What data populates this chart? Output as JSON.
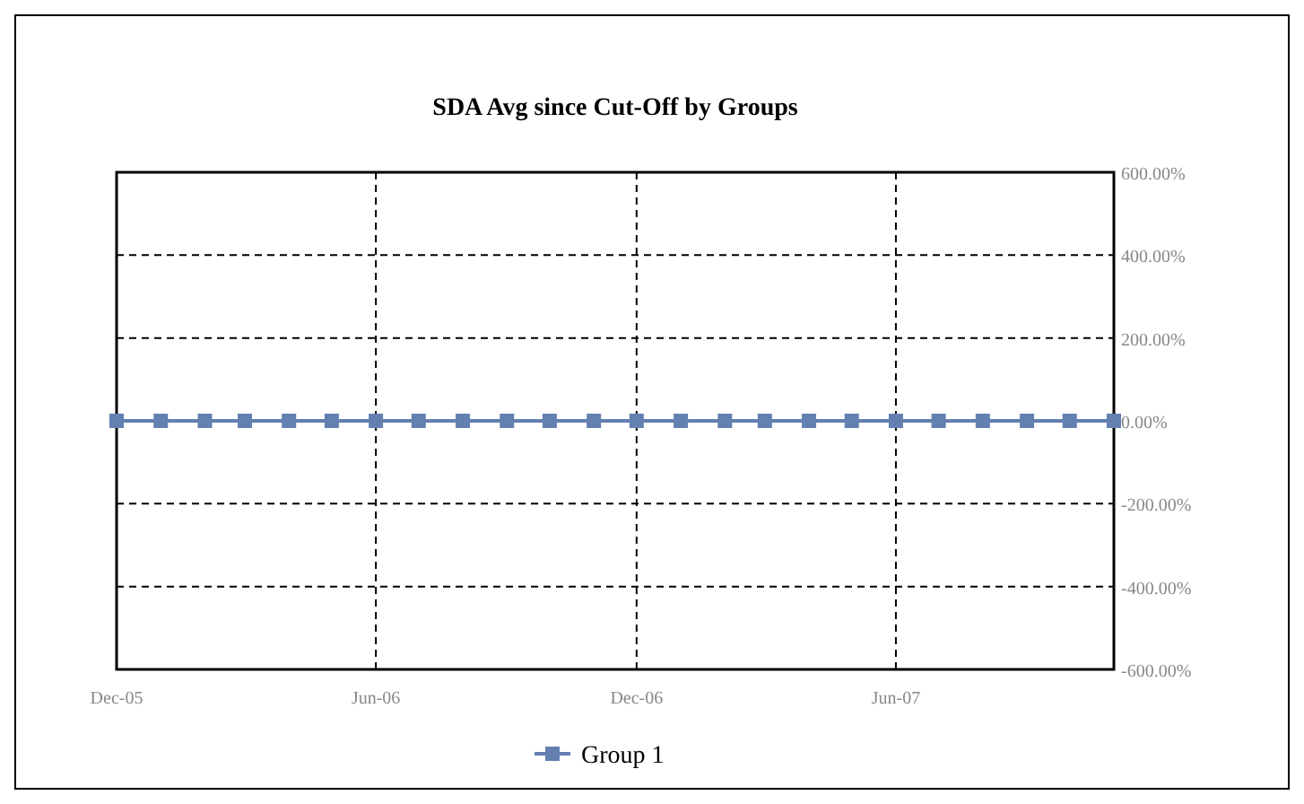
{
  "chart_data": {
    "type": "line",
    "title": "SDA Avg since Cut-Off by Groups",
    "x": [
      "2005-12",
      "2006-01",
      "2006-02",
      "2006-03",
      "2006-04",
      "2006-05",
      "2006-06",
      "2006-07",
      "2006-08",
      "2006-09",
      "2006-10",
      "2006-11",
      "2006-12",
      "2007-01",
      "2007-02",
      "2007-03",
      "2007-04",
      "2007-05",
      "2007-06",
      "2007-07",
      "2007-08",
      "2007-09",
      "2007-10",
      "2007-11"
    ],
    "series": [
      {
        "name": "Group 1",
        "color": "#6380b0",
        "values": [
          0,
          0,
          0,
          0,
          0,
          0,
          0,
          0,
          0,
          0,
          0,
          0,
          0,
          0,
          0,
          0,
          0,
          0,
          0,
          0,
          0,
          0,
          0,
          0
        ]
      }
    ],
    "xlim": [
      "2005-12",
      "2007-11"
    ],
    "xticks": [
      {
        "value": "2005-12",
        "label": "Dec-05"
      },
      {
        "value": "2006-06",
        "label": "Jun-06"
      },
      {
        "value": "2006-12",
        "label": "Dec-06"
      },
      {
        "value": "2007-06",
        "label": "Jun-07"
      }
    ],
    "ylim": [
      -600,
      600
    ],
    "yticks": [
      {
        "value": -600,
        "label": "-600.00%"
      },
      {
        "value": -400,
        "label": "-400.00%"
      },
      {
        "value": -200,
        "label": "-200.00%"
      },
      {
        "value": 0,
        "label": "0.00%"
      },
      {
        "value": 200,
        "label": "200.00%"
      },
      {
        "value": 400,
        "label": "400.00%"
      },
      {
        "value": 600,
        "label": "600.00%"
      }
    ],
    "grid": true,
    "line_style": "solid",
    "marker": "square",
    "legend": "bottom"
  }
}
